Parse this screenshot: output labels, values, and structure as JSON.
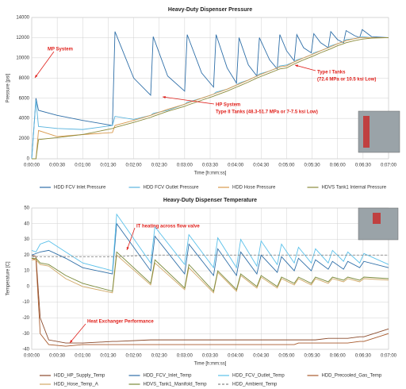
{
  "chart_data": [
    {
      "type": "line",
      "title": "Heavy-Duty Dispenser Pressure",
      "xlabel": "Time [h:mm:ss]",
      "ylabel": "Pressure [psi]",
      "x": [
        0,
        5,
        8,
        30,
        60,
        95,
        98,
        120,
        140,
        143,
        160,
        180,
        183,
        200,
        214,
        217,
        230,
        241,
        244,
        255,
        265,
        268,
        280,
        289,
        292,
        300,
        309,
        312,
        320,
        329,
        332,
        340,
        349,
        352,
        360,
        367,
        370,
        380,
        386,
        389,
        400,
        420
      ],
      "xlim": [
        0,
        420
      ],
      "xticks": [
        {
          "value": 0,
          "label": "0:00:00"
        },
        {
          "value": 30,
          "label": "0:00:30"
        },
        {
          "value": 60,
          "label": "0:01:00"
        },
        {
          "value": 90,
          "label": "0:01:30"
        },
        {
          "value": 120,
          "label": "0:02:00"
        },
        {
          "value": 150,
          "label": "0:02:30"
        },
        {
          "value": 180,
          "label": "0:03:00"
        },
        {
          "value": 210,
          "label": "0:03:30"
        },
        {
          "value": 240,
          "label": "0:04:00"
        },
        {
          "value": 270,
          "label": "0:04:30"
        },
        {
          "value": 300,
          "label": "0:05:00"
        },
        {
          "value": 330,
          "label": "0:05:30"
        },
        {
          "value": 360,
          "label": "0:06:00"
        },
        {
          "value": 390,
          "label": "0:06:30"
        },
        {
          "value": 420,
          "label": "0:07:00"
        }
      ],
      "ylim": [
        0,
        14000
      ],
      "yticks": [
        0,
        2000,
        4000,
        6000,
        8000,
        10000,
        12000,
        14000
      ],
      "grid": true,
      "series": [
        {
          "name": "HDD FCV Inlet Pressure",
          "color": "#2f6fa8",
          "values": [
            0,
            6000,
            4800,
            4300,
            3800,
            3300,
            12600,
            8000,
            6300,
            12100,
            8200,
            6700,
            12300,
            8500,
            7100,
            12300,
            9000,
            7500,
            12000,
            9300,
            8200,
            12000,
            9800,
            8900,
            12300,
            10700,
            9700,
            12300,
            11000,
            10500,
            12400,
            11500,
            11000,
            12600,
            11800,
            11500,
            12700,
            12200,
            12000,
            12800,
            12100,
            12000
          ]
        },
        {
          "name": "HDD FCV Outlet Pressure",
          "color": "#5ab4de",
          "values": [
            0,
            5800,
            3200,
            3000,
            2900,
            3300,
            4200,
            3900,
            4300,
            4500,
            4800,
            5400,
            5600,
            6000,
            6400,
            6600,
            6900,
            7300,
            7500,
            7800,
            8200,
            8400,
            8700,
            9000,
            9200,
            9300,
            9600,
            9800,
            10000,
            10300,
            10500,
            10700,
            11000,
            11200,
            11400,
            11600,
            11800,
            11900,
            12000,
            12100,
            12000,
            12000
          ]
        },
        {
          "name": "HDD Hose Pressure",
          "color": "#d99a4e",
          "values": [
            0,
            0,
            2800,
            2200,
            2400,
            2600,
            3300,
            3800,
            4300,
            4400,
            4900,
            5400,
            5500,
            6000,
            6400,
            6500,
            6900,
            7300,
            7400,
            7800,
            8200,
            8300,
            8700,
            9000,
            9100,
            9200,
            9600,
            9700,
            10000,
            10300,
            10400,
            10700,
            11000,
            11100,
            11400,
            11600,
            11700,
            11900,
            12000,
            12000,
            12000,
            12000
          ]
        },
        {
          "name": "HDVS Tank1 Internal Pressure",
          "color": "#8c8c3c",
          "values": [
            0,
            0,
            1900,
            2100,
            2400,
            3000,
            3100,
            3600,
            4100,
            4200,
            4700,
            5200,
            5300,
            5800,
            6200,
            6300,
            6700,
            7100,
            7200,
            7600,
            8000,
            8100,
            8500,
            8800,
            8900,
            9000,
            9400,
            9500,
            9800,
            10100,
            10200,
            10500,
            10800,
            10900,
            11200,
            11400,
            11500,
            11700,
            11800,
            11850,
            11950,
            12000
          ]
        }
      ],
      "annotations": [
        [
          "MP System"
        ],
        [
          "HP System",
          "Type II Tanks (48.3-51.7 MPa or 7-7.5 ksi Low)"
        ],
        [
          "Type I Tanks",
          "(72.4 MPa or 10.5 ksi Low)"
        ]
      ]
    },
    {
      "type": "line",
      "title": "Heavy-Duty Dispenser Temperature",
      "xlabel": "Time [h:mm:ss]",
      "ylabel": "Temperature [C]",
      "x": [
        0,
        5,
        10,
        20,
        40,
        60,
        95,
        100,
        140,
        145,
        180,
        185,
        214,
        219,
        241,
        246,
        265,
        270,
        289,
        294,
        309,
        314,
        329,
        334,
        349,
        354,
        367,
        372,
        386,
        391,
        420
      ],
      "xlim": [
        0,
        420
      ],
      "xticks": [
        {
          "value": 0,
          "label": "0:00:00"
        },
        {
          "value": 30,
          "label": "0:00:30"
        },
        {
          "value": 60,
          "label": "0:01:00"
        },
        {
          "value": 90,
          "label": "0:01:30"
        },
        {
          "value": 120,
          "label": "0:02:00"
        },
        {
          "value": 150,
          "label": "0:02:30"
        },
        {
          "value": 180,
          "label": "0:03:00"
        },
        {
          "value": 210,
          "label": "0:03:30"
        },
        {
          "value": 240,
          "label": "0:04:00"
        },
        {
          "value": 270,
          "label": "0:04:30"
        },
        {
          "value": 300,
          "label": "0:05:00"
        },
        {
          "value": 330,
          "label": "0:05:30"
        },
        {
          "value": 360,
          "label": "0:06:00"
        },
        {
          "value": 390,
          "label": "0:06:30"
        },
        {
          "value": 420,
          "label": "0:07:00"
        }
      ],
      "ylim": [
        -40,
        50
      ],
      "yticks": [
        -40,
        -30,
        -20,
        -10,
        0,
        10,
        20,
        30,
        40,
        50
      ],
      "grid": true,
      "series": [
        {
          "name": "HDD_HP_Supply_Temp",
          "color": "#8b4a2b",
          "values": [
            20,
            19,
            -20,
            -34,
            -36,
            -36,
            -35,
            -35,
            -34,
            -34,
            -34,
            -34,
            -34,
            -34,
            -34,
            -34,
            -34,
            -34,
            -34,
            -34,
            -34,
            -34,
            -34,
            -34,
            -33,
            -33,
            -33,
            -33,
            -32,
            -32,
            -27
          ]
        },
        {
          "name": "HDD_FCV_Inlet_Temp",
          "color": "#2f6fa8",
          "values": [
            20,
            21,
            22,
            23,
            18,
            12,
            8,
            40,
            10,
            32,
            8,
            27,
            7,
            24,
            7,
            22,
            8,
            20,
            9,
            19,
            10,
            18,
            10,
            17,
            11,
            16,
            11,
            16,
            12,
            16,
            12
          ]
        },
        {
          "name": "HDD_FCV_Outlet_Temp",
          "color": "#5ac0ea",
          "values": [
            23,
            22,
            27,
            29,
            22,
            15,
            10,
            46,
            15,
            38,
            14,
            33,
            12,
            31,
            12,
            30,
            13,
            29,
            14,
            27,
            15,
            25,
            15,
            24,
            15,
            23,
            16,
            22,
            15,
            21,
            14
          ]
        },
        {
          "name": "HDD_Precooled_Gas_Temp",
          "color": "#a85a2c",
          "values": [
            18,
            17,
            -30,
            -37,
            -38,
            -37,
            -37,
            -37,
            -37,
            -37,
            -37,
            -37,
            -37,
            -37,
            -37,
            -37,
            -37,
            -37,
            -37,
            -37,
            -37,
            -36,
            -36,
            -36,
            -36,
            -36,
            -36,
            -36,
            -35,
            -35,
            -30
          ]
        },
        {
          "name": "HDD_Hose_Temp_A",
          "color": "#d1a866",
          "values": [
            17,
            17,
            14,
            13,
            5,
            0,
            -4,
            20,
            1,
            15,
            -2,
            12,
            -4,
            9,
            -3,
            7,
            -1,
            6,
            -1,
            5,
            1,
            5,
            1,
            5,
            2,
            5,
            3,
            5,
            3,
            5,
            4
          ]
        },
        {
          "name": "HDVS_Tank1_Manifold_Temp",
          "color": "#7a8a3a",
          "values": [
            18,
            18,
            15,
            14,
            7,
            2,
            -3,
            22,
            2,
            17,
            -1,
            14,
            -3,
            10,
            -2,
            8,
            0,
            7,
            0,
            6,
            2,
            6,
            2,
            6,
            3,
            6,
            4,
            6,
            4,
            6,
            5
          ]
        },
        {
          "name": "HDD_Ambient_Temp",
          "color": "#888888",
          "line_style": "dashed",
          "values": [
            19,
            19,
            19,
            19,
            19,
            19,
            19,
            19,
            20,
            20,
            20,
            20,
            20,
            20,
            20,
            20,
            20,
            20,
            20,
            20,
            20,
            20,
            20,
            20,
            20,
            20,
            20,
            20,
            20,
            20,
            20
          ]
        }
      ],
      "annotations": [
        [
          "IT heating across flow valve"
        ],
        [
          "Heat Exchanger Performance"
        ]
      ]
    }
  ]
}
